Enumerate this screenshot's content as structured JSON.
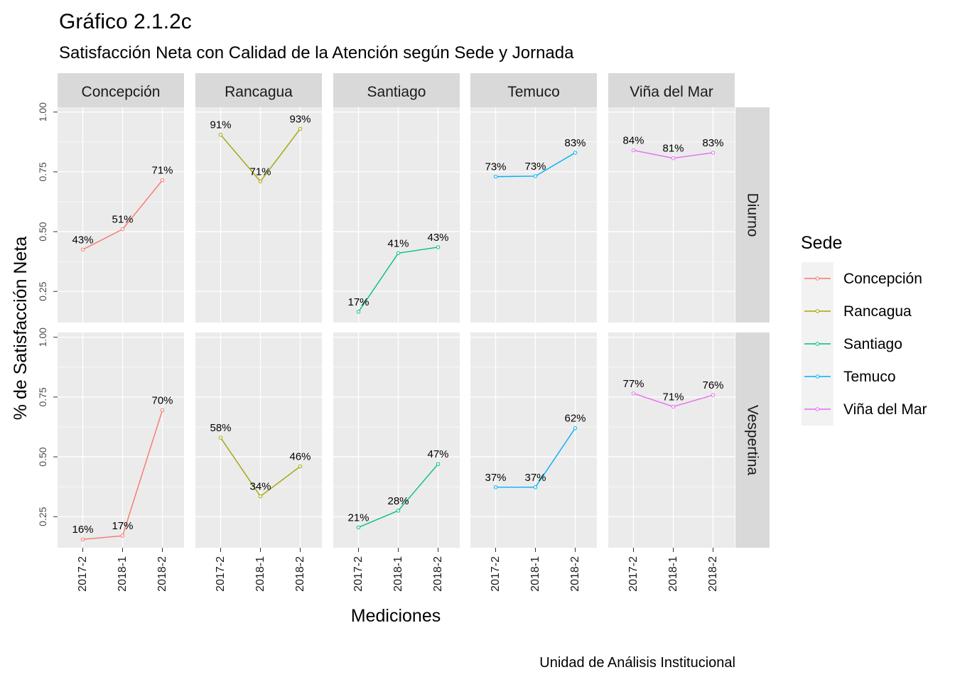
{
  "chart_data": {
    "type": "line",
    "title": "Gráfico 2.1.2c",
    "subtitle": "Satisfacción Neta con Calidad de la Atención según Sede y Jornada",
    "xlabel": "Mediciones",
    "ylabel": "% de Satisfacción Neta",
    "caption": "Unidad de Análisis Institucional",
    "categories": [
      "2017-2",
      "2018-1",
      "2018-2"
    ],
    "y_ticks": [
      "0.25",
      "0.50",
      "0.75",
      "1.00"
    ],
    "ylim": [
      0.12,
      1.02
    ],
    "grid": true,
    "facet_columns": [
      "Concepción",
      "Rancagua",
      "Santiago",
      "Temuco",
      "Viña del Mar"
    ],
    "facet_rows": [
      "Diurno",
      "Vespertina"
    ],
    "legend": {
      "title": "Sede",
      "position": "right",
      "entries": [
        "Concepción",
        "Rancagua",
        "Santiago",
        "Temuco",
        "Viña del Mar"
      ]
    },
    "colors": {
      "Concepción": "#F8766D",
      "Rancagua": "#A3A500",
      "Santiago": "#00BF7D",
      "Temuco": "#00B0F6",
      "Viña del Mar": "#E76BF3"
    },
    "series": [
      {
        "sede": "Concepción",
        "jornada": "Diurno",
        "values": [
          0.425,
          0.51,
          0.715
        ],
        "labels": [
          "43%",
          "51%",
          "71%"
        ]
      },
      {
        "sede": "Rancagua",
        "jornada": "Diurno",
        "values": [
          0.905,
          0.71,
          0.93
        ],
        "labels": [
          "91%",
          "71%",
          "93%"
        ]
      },
      {
        "sede": "Santiago",
        "jornada": "Diurno",
        "values": [
          0.165,
          0.41,
          0.435
        ],
        "labels": [
          "17%",
          "41%",
          "43%"
        ]
      },
      {
        "sede": "Temuco",
        "jornada": "Diurno",
        "values": [
          0.73,
          0.732,
          0.83
        ],
        "labels": [
          "73%",
          "73%",
          "83%"
        ]
      },
      {
        "sede": "Viña del Mar",
        "jornada": "Diurno",
        "values": [
          0.84,
          0.807,
          0.83
        ],
        "labels": [
          "84%",
          "81%",
          "83%"
        ]
      },
      {
        "sede": "Concepción",
        "jornada": "Vespertina",
        "values": [
          0.155,
          0.17,
          0.695
        ],
        "labels": [
          "16%",
          "17%",
          "70%"
        ]
      },
      {
        "sede": "Rancagua",
        "jornada": "Vespertina",
        "values": [
          0.58,
          0.335,
          0.46
        ],
        "labels": [
          "58%",
          "34%",
          "46%"
        ]
      },
      {
        "sede": "Santiago",
        "jornada": "Vespertina",
        "values": [
          0.205,
          0.275,
          0.47
        ],
        "labels": [
          "21%",
          "28%",
          "47%"
        ]
      },
      {
        "sede": "Temuco",
        "jornada": "Vespertina",
        "values": [
          0.373,
          0.373,
          0.62
        ],
        "labels": [
          "37%",
          "37%",
          "62%"
        ]
      },
      {
        "sede": "Viña del Mar",
        "jornada": "Vespertina",
        "values": [
          0.765,
          0.71,
          0.758
        ],
        "labels": [
          "77%",
          "71%",
          "76%"
        ]
      }
    ]
  }
}
